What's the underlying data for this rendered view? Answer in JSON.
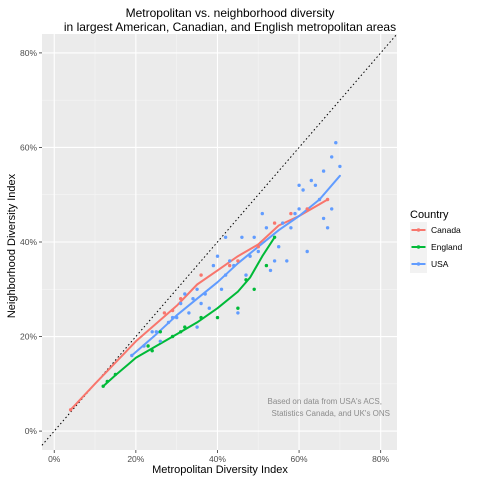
{
  "chart_data": {
    "type": "scatter",
    "title": "Metropolitan vs. neighborhood diversity",
    "subtitle": "in largest American, Canadian, and English metropolitan areas",
    "xlabel": "Metropolitan Diversity Index",
    "ylabel": "Neighborhood Diversity Index",
    "xlim": [
      -0.03,
      0.84
    ],
    "ylim": [
      -0.04,
      0.84
    ],
    "x_ticks": [
      0,
      0.2,
      0.4,
      0.6,
      0.8
    ],
    "x_tick_labels": [
      "0%",
      "20%",
      "40%",
      "60%",
      "80%"
    ],
    "y_ticks": [
      0,
      0.2,
      0.4,
      0.6,
      0.8
    ],
    "y_tick_labels": [
      "0%",
      "20%",
      "40%",
      "60%",
      "80%"
    ],
    "grid": true,
    "reference_line": "y = x (dotted)",
    "legend": {
      "title": "Country",
      "position": "right",
      "entries": [
        "Canada",
        "England",
        "USA"
      ]
    },
    "caption": [
      "Based on data from USA's ACS,",
      "Statistics Canada, and UK's ONS"
    ],
    "colors": {
      "Canada": "#F8766D",
      "England": "#00BA38",
      "USA": "#619CFF",
      "panel": "#EBEBEB"
    },
    "series": [
      {
        "name": "Canada",
        "points": [
          [
            0.04,
            0.045
          ],
          [
            0.27,
            0.25
          ],
          [
            0.29,
            0.255
          ],
          [
            0.31,
            0.28
          ],
          [
            0.36,
            0.33
          ],
          [
            0.43,
            0.35
          ],
          [
            0.45,
            0.36
          ],
          [
            0.5,
            0.39
          ],
          [
            0.54,
            0.44
          ],
          [
            0.58,
            0.46
          ],
          [
            0.62,
            0.47
          ],
          [
            0.67,
            0.49
          ]
        ],
        "fit": [
          [
            0.04,
            0.045
          ],
          [
            0.1,
            0.1
          ],
          [
            0.2,
            0.19
          ],
          [
            0.3,
            0.265
          ],
          [
            0.35,
            0.31
          ],
          [
            0.4,
            0.34
          ],
          [
            0.45,
            0.37
          ],
          [
            0.5,
            0.395
          ],
          [
            0.55,
            0.435
          ],
          [
            0.6,
            0.455
          ],
          [
            0.65,
            0.48
          ],
          [
            0.67,
            0.49
          ]
        ]
      },
      {
        "name": "England",
        "points": [
          [
            0.12,
            0.095
          ],
          [
            0.13,
            0.105
          ],
          [
            0.15,
            0.12
          ],
          [
            0.23,
            0.18
          ],
          [
            0.24,
            0.17
          ],
          [
            0.26,
            0.21
          ],
          [
            0.29,
            0.2
          ],
          [
            0.31,
            0.21
          ],
          [
            0.32,
            0.22
          ],
          [
            0.36,
            0.24
          ],
          [
            0.4,
            0.24
          ],
          [
            0.45,
            0.26
          ],
          [
            0.47,
            0.32
          ],
          [
            0.49,
            0.3
          ],
          [
            0.52,
            0.35
          ],
          [
            0.54,
            0.41
          ]
        ],
        "fit": [
          [
            0.12,
            0.095
          ],
          [
            0.15,
            0.118
          ],
          [
            0.2,
            0.155
          ],
          [
            0.25,
            0.18
          ],
          [
            0.3,
            0.205
          ],
          [
            0.35,
            0.23
          ],
          [
            0.4,
            0.26
          ],
          [
            0.45,
            0.295
          ],
          [
            0.48,
            0.325
          ],
          [
            0.51,
            0.37
          ],
          [
            0.54,
            0.41
          ]
        ]
      },
      {
        "name": "USA",
        "points": [
          [
            0.19,
            0.16
          ],
          [
            0.22,
            0.18
          ],
          [
            0.24,
            0.21
          ],
          [
            0.25,
            0.21
          ],
          [
            0.26,
            0.19
          ],
          [
            0.28,
            0.23
          ],
          [
            0.29,
            0.24
          ],
          [
            0.3,
            0.24
          ],
          [
            0.31,
            0.27
          ],
          [
            0.32,
            0.29
          ],
          [
            0.33,
            0.25
          ],
          [
            0.34,
            0.28
          ],
          [
            0.35,
            0.22
          ],
          [
            0.35,
            0.3
          ],
          [
            0.36,
            0.27
          ],
          [
            0.37,
            0.29
          ],
          [
            0.38,
            0.26
          ],
          [
            0.39,
            0.35
          ],
          [
            0.4,
            0.37
          ],
          [
            0.41,
            0.3
          ],
          [
            0.42,
            0.33
          ],
          [
            0.42,
            0.41
          ],
          [
            0.43,
            0.36
          ],
          [
            0.44,
            0.35
          ],
          [
            0.45,
            0.25
          ],
          [
            0.46,
            0.41
          ],
          [
            0.47,
            0.33
          ],
          [
            0.48,
            0.37
          ],
          [
            0.49,
            0.41
          ],
          [
            0.5,
            0.38
          ],
          [
            0.51,
            0.46
          ],
          [
            0.52,
            0.43
          ],
          [
            0.53,
            0.34
          ],
          [
            0.54,
            0.36
          ],
          [
            0.55,
            0.39
          ],
          [
            0.56,
            0.44
          ],
          [
            0.57,
            0.36
          ],
          [
            0.58,
            0.43
          ],
          [
            0.59,
            0.46
          ],
          [
            0.6,
            0.47
          ],
          [
            0.6,
            0.52
          ],
          [
            0.61,
            0.51
          ],
          [
            0.62,
            0.38
          ],
          [
            0.63,
            0.53
          ],
          [
            0.64,
            0.52
          ],
          [
            0.65,
            0.49
          ],
          [
            0.66,
            0.55
          ],
          [
            0.66,
            0.45
          ],
          [
            0.67,
            0.43
          ],
          [
            0.68,
            0.47
          ],
          [
            0.68,
            0.58
          ],
          [
            0.69,
            0.61
          ],
          [
            0.7,
            0.56
          ]
        ],
        "fit": [
          [
            0.19,
            0.16
          ],
          [
            0.25,
            0.205
          ],
          [
            0.3,
            0.245
          ],
          [
            0.35,
            0.28
          ],
          [
            0.4,
            0.315
          ],
          [
            0.45,
            0.355
          ],
          [
            0.5,
            0.39
          ],
          [
            0.55,
            0.425
          ],
          [
            0.6,
            0.455
          ],
          [
            0.65,
            0.49
          ],
          [
            0.7,
            0.54
          ]
        ]
      }
    ]
  }
}
